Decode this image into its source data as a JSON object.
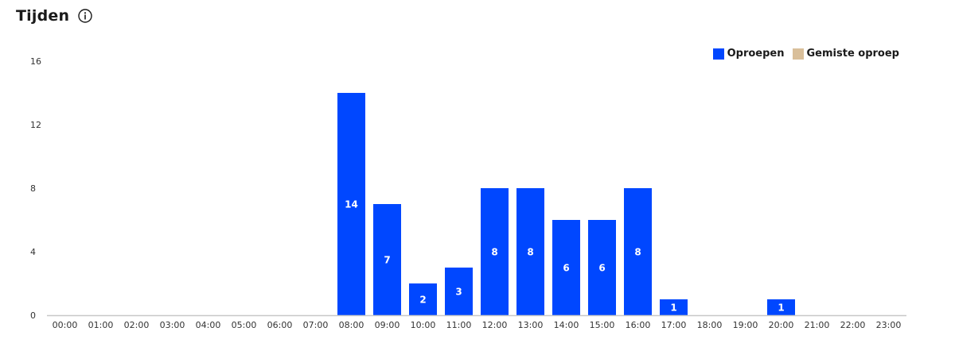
{
  "header": {
    "title": "Tijden",
    "info_icon": "info-icon"
  },
  "colors": {
    "oproepen": "#0047ff",
    "gemiste_oproep": "#d9bf9a"
  },
  "chart_data": {
    "type": "bar",
    "categories": [
      "00:00",
      "01:00",
      "02:00",
      "03:00",
      "04:00",
      "05:00",
      "06:00",
      "07:00",
      "08:00",
      "09:00",
      "10:00",
      "11:00",
      "12:00",
      "13:00",
      "14:00",
      "15:00",
      "16:00",
      "17:00",
      "18:00",
      "19:00",
      "20:00",
      "21:00",
      "22:00",
      "23:00"
    ],
    "series": [
      {
        "name": "Oproepen",
        "values": [
          0,
          0,
          0,
          0,
          0,
          0,
          0,
          0,
          14,
          7,
          2,
          3,
          8,
          8,
          6,
          6,
          8,
          1,
          0,
          0,
          1,
          0,
          0,
          0
        ]
      },
      {
        "name": "Gemiste oproep",
        "values": [
          0,
          0,
          0,
          0,
          0,
          0,
          0,
          0,
          0,
          0,
          0,
          0,
          0,
          0,
          0,
          0,
          0,
          0,
          0,
          0,
          0,
          0,
          0,
          0
        ]
      }
    ],
    "yticks": [
      0,
      4,
      8,
      12,
      16
    ],
    "ylim": [
      0,
      16
    ],
    "grid": false,
    "legend_position": "top-right",
    "title": "",
    "xlabel": "",
    "ylabel": ""
  }
}
